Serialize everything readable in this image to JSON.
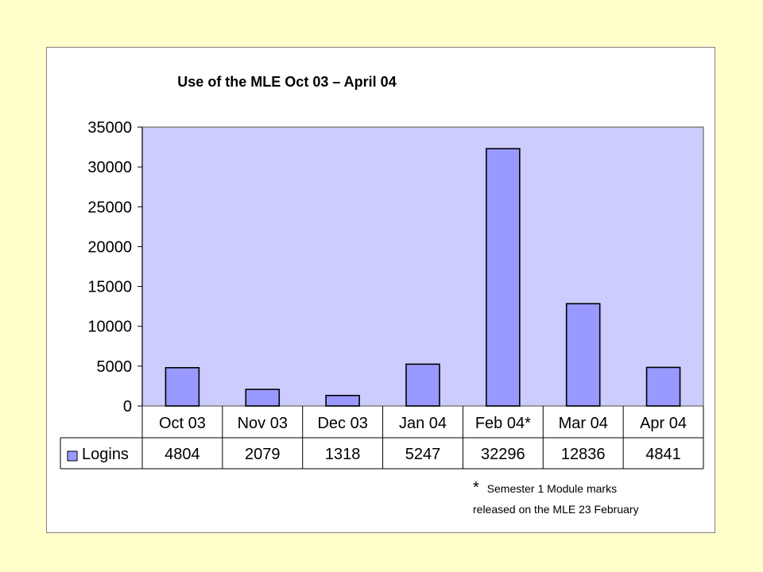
{
  "chart_data": {
    "type": "bar",
    "title": "Use of the MLE Oct 03 – April 04",
    "categories": [
      "Oct 03",
      "Nov 03",
      "Dec 03",
      "Jan 04",
      "Feb 04*",
      "Mar 04",
      "Apr 04"
    ],
    "series": [
      {
        "name": "Logins",
        "values": [
          4804,
          2079,
          1318,
          5247,
          32296,
          12836,
          4841
        ]
      }
    ],
    "data_table_cells": [
      "4804",
      "2079",
      "1318",
      "5247",
      "32296",
      "12836",
      "4841"
    ],
    "yticks": [
      "0",
      "5000",
      "10000",
      "15000",
      "20000",
      "25000",
      "30000",
      "35000"
    ],
    "ylim": [
      0,
      35000
    ],
    "grid": false,
    "legend": "data table (left key)",
    "colors": {
      "page_background": "#FFFFCC",
      "plot_background": "#CCCCFF",
      "bar_fill": "#9999FF",
      "bar_stroke": "#000000"
    },
    "footnote": {
      "star": "*",
      "line1": "Semester 1 Module marks",
      "line2": "released on the MLE 23 February"
    }
  }
}
